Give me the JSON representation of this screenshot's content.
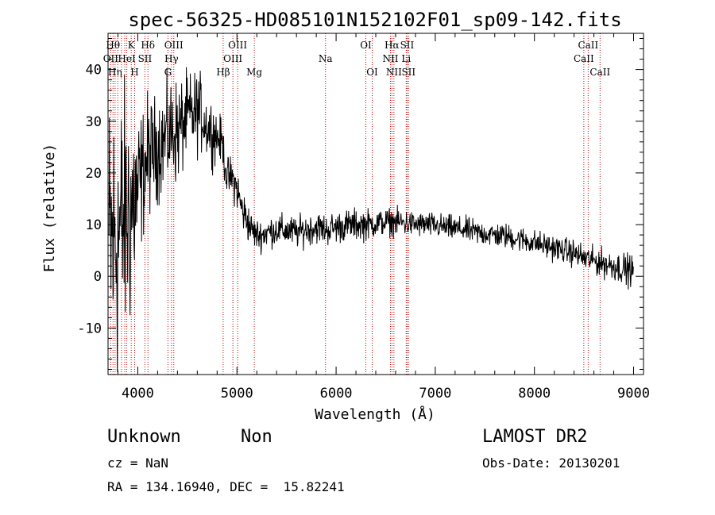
{
  "chart_data": {
    "type": "line",
    "title": "spec-56325-HD085101N152102F01_sp09-142.fits",
    "xlabel": "Wavelength (Å)",
    "ylabel": "Flux (relative)",
    "xlim": [
      3700,
      9100
    ],
    "ylim": [
      -19,
      47
    ],
    "xticks": [
      4000,
      5000,
      6000,
      7000,
      8000,
      9000
    ],
    "yticks": [
      -10,
      0,
      10,
      20,
      30,
      40
    ],
    "grid": false,
    "line_color": "#000000",
    "marker_color": "#cc0000",
    "envelope": {
      "x": [
        3700,
        3750,
        3800,
        3850,
        3900,
        3950,
        4000,
        4050,
        4100,
        4150,
        4200,
        4250,
        4300,
        4350,
        4400,
        4450,
        4500,
        4550,
        4600,
        4650,
        4700,
        4750,
        4800,
        4850,
        4900,
        4950,
        5000,
        5050,
        5100,
        5150,
        5200,
        5250,
        5300,
        5400,
        5500,
        5600,
        5700,
        5800,
        5900,
        6000,
        6100,
        6200,
        6300,
        6400,
        6500,
        6600,
        6700,
        6800,
        6900,
        7000,
        7100,
        7200,
        7300,
        7400,
        7500,
        7600,
        7700,
        7800,
        7900,
        8000,
        8100,
        8200,
        8300,
        8400,
        8500,
        8600,
        8700,
        8800,
        8900,
        9000
      ],
      "y": [
        5,
        6,
        8,
        10,
        12,
        14,
        16,
        20,
        23,
        24,
        25,
        26,
        27,
        28,
        28,
        29,
        31,
        31,
        32,
        31,
        29,
        28,
        27,
        26,
        19,
        19,
        17,
        13,
        11,
        9,
        8,
        8,
        8.5,
        9,
        8.8,
        8.5,
        9,
        9.5,
        9,
        9.5,
        9.8,
        10,
        10,
        10.2,
        10.5,
        10.5,
        10.3,
        10,
        10,
        9.8,
        9.5,
        9.2,
        9,
        8.5,
        8.3,
        8,
        7.8,
        7.4,
        7,
        6.5,
        6,
        5.5,
        5,
        4.5,
        3.5,
        3,
        2.5,
        2,
        1.5,
        1
      ],
      "noise": [
        15,
        15,
        14,
        13,
        12,
        11,
        8,
        6,
        6,
        5,
        5,
        5,
        5,
        5,
        5,
        4.5,
        4,
        4,
        4,
        3.5,
        3,
        3,
        2.5,
        2,
        2,
        2,
        2,
        2,
        2,
        1.5,
        1.5,
        1.5,
        1.5,
        1.5,
        1.5,
        1.5,
        1.5,
        1.5,
        1.5,
        1.5,
        1.5,
        1.5,
        1.5,
        1.3,
        1.3,
        1.3,
        1.3,
        1.2,
        1.2,
        1.2,
        1.2,
        1.2,
        1.2,
        1.2,
        1.2,
        1.2,
        1.2,
        1.2,
        1.2,
        1.2,
        1.2,
        1.2,
        1.2,
        1.3,
        1.3,
        1.3,
        1.4,
        1.4,
        1.5,
        1.5
      ]
    },
    "spectral_lines": [
      {
        "x": 3727,
        "label": "OII",
        "row": 2
      },
      {
        "x": 3750,
        "label": "Hθ",
        "row": 1
      },
      {
        "x": 3771,
        "label": "Hη",
        "row": 3
      },
      {
        "x": 3798,
        "label": "",
        "row": 0
      },
      {
        "x": 3835,
        "label": "",
        "row": 0
      },
      {
        "x": 3869,
        "label": "",
        "row": 0
      },
      {
        "x": 3889,
        "label": "HeI",
        "row": 2
      },
      {
        "x": 3934,
        "label": "K",
        "row": 1
      },
      {
        "x": 3968,
        "label": "H",
        "row": 3
      },
      {
        "x": 4072,
        "label": "SII",
        "row": 2
      },
      {
        "x": 4102,
        "label": "Hδ",
        "row": 1
      },
      {
        "x": 4304,
        "label": "G",
        "row": 3
      },
      {
        "x": 4340,
        "label": "Hγ",
        "row": 2
      },
      {
        "x": 4363,
        "label": "OIII",
        "row": 1
      },
      {
        "x": 4861,
        "label": "Hβ",
        "row": 3
      },
      {
        "x": 4959,
        "label": "OIII",
        "row": 2
      },
      {
        "x": 5007,
        "label": "OIII",
        "row": 1
      },
      {
        "x": 5175,
        "label": "Mg",
        "row": 3
      },
      {
        "x": 5893,
        "label": "Na",
        "row": 2
      },
      {
        "x": 6300,
        "label": "OI",
        "row": 1
      },
      {
        "x": 6364,
        "label": "OI",
        "row": 3
      },
      {
        "x": 6548,
        "label": "NII",
        "row": 2
      },
      {
        "x": 6563,
        "label": "Hα",
        "row": 1
      },
      {
        "x": 6583,
        "label": "NII",
        "row": 3
      },
      {
        "x": 6707,
        "label": "Li",
        "row": 2
      },
      {
        "x": 6716,
        "label": "SII",
        "row": 1
      },
      {
        "x": 6731,
        "label": "SII",
        "row": 3
      },
      {
        "x": 8498,
        "label": "CaII",
        "row": 2
      },
      {
        "x": 8542,
        "label": "CaII",
        "row": 1
      },
      {
        "x": 8662,
        "label": "CaII",
        "row": 3
      }
    ]
  },
  "info": {
    "class_name": "Unknown",
    "subclass": "Non",
    "survey": "LAMOST DR2",
    "redshift": "cz = NaN",
    "obs_date": "Obs-Date: 20130201",
    "coords": "RA = 134.16940, DEC =  15.82241"
  }
}
